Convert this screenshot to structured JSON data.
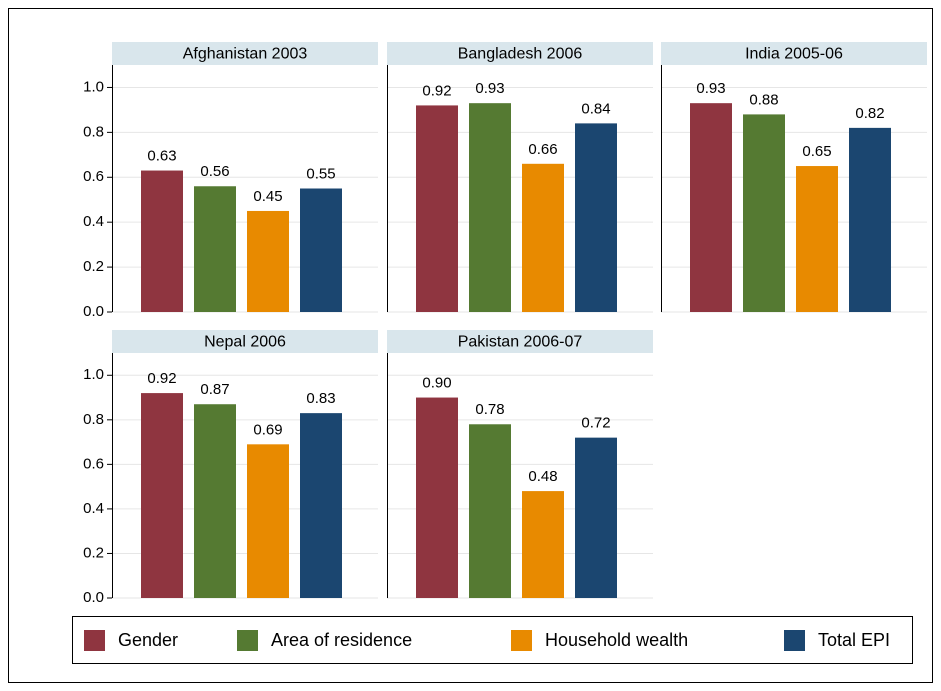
{
  "chart_data": {
    "type": "bar",
    "categories": [
      "Afghanistan 2003",
      "Bangladesh 2006",
      "India 2005-06",
      "Nepal 2006",
      "Pakistan 2006-07"
    ],
    "series": [
      {
        "name": "Gender",
        "color": "#8f3540",
        "values": [
          0.63,
          0.92,
          0.93,
          0.92,
          0.9
        ],
        "value_labels": [
          "0.63",
          "0.92",
          "0.93",
          "0.92",
          "0.90"
        ]
      },
      {
        "name": "Area of residence",
        "color": "#557a32",
        "values": [
          0.56,
          0.93,
          0.88,
          0.87,
          0.78
        ],
        "value_labels": [
          "0.56",
          "0.93",
          "0.88",
          "0.87",
          "0.78"
        ]
      },
      {
        "name": "Household wealth",
        "color": "#e88a00",
        "values": [
          0.45,
          0.66,
          0.65,
          0.69,
          0.48
        ],
        "value_labels": [
          "0.45",
          "0.66",
          "0.65",
          "0.69",
          "0.48"
        ]
      },
      {
        "name": "Total EPI",
        "color": "#1b4670",
        "values": [
          0.55,
          0.84,
          0.82,
          0.83,
          0.72
        ],
        "value_labels": [
          "0.55",
          "0.84",
          "0.82",
          "0.83",
          "0.72"
        ]
      }
    ],
    "ylim": [
      0,
      1.1
    ],
    "yticks": [
      {
        "value": 0,
        "label": "0.0"
      },
      {
        "value": 0.2,
        "label": "0.2"
      },
      {
        "value": 0.4,
        "label": "0.4"
      },
      {
        "value": 0.6,
        "label": "0.6"
      },
      {
        "value": 0.8,
        "label": "0.8"
      },
      {
        "value": 1,
        "label": "1.0"
      }
    ],
    "grid": true
  }
}
